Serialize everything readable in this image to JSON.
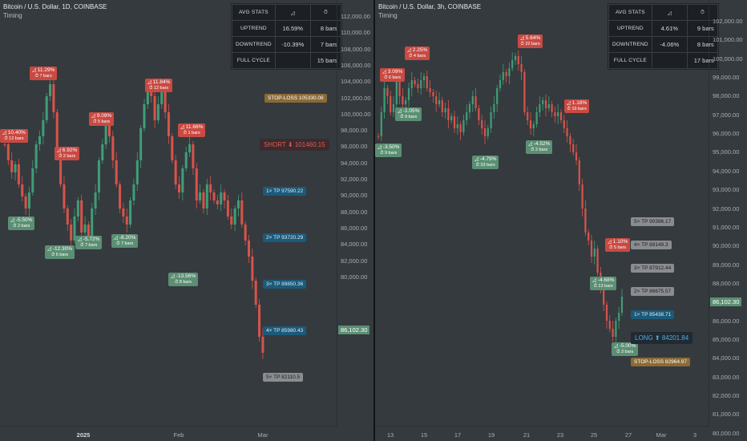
{
  "left": {
    "title": "Bitcoin / U.S. Dollar, 1D, COINBASE",
    "subtitle": "Timing",
    "price_ticks": [
      "112,000.00",
      "110,000.00",
      "108,000.00",
      "106,000.00",
      "104,000.00",
      "102,000.00",
      "100,000.00",
      "98,000.00",
      "96,000.00",
      "94,000.00",
      "92,000.00",
      "90,000.00",
      "88,000.00",
      "86,000.00",
      "84,000.00",
      "82,000.00",
      "80,000.00"
    ],
    "time_ticks": [
      {
        "label": "2025",
        "bold": true
      },
      {
        "label": "Feb",
        "bold": false
      },
      {
        "label": "Mar",
        "bold": false
      }
    ],
    "stats": {
      "header": "AVG STATS",
      "h2": "◿",
      "h3": "⏱",
      "rows": [
        {
          "label": "UPTREND",
          "pct": "16.59%",
          "bars": "8 bars"
        },
        {
          "label": "DOWNTREND",
          "pct": "-10.39%",
          "bars": "7 bars"
        },
        {
          "label": "FULL CYCLE",
          "pct": "",
          "bars": "15 bars"
        }
      ]
    },
    "labels": [
      {
        "kind": "up",
        "pct": "◿ 11.29%",
        "bars": "⏱ 7 bars"
      },
      {
        "kind": "up",
        "pct": "◿ 10.40%",
        "bars": "⏱ 12 bars"
      },
      {
        "kind": "up",
        "pct": "◿ 6.92%",
        "bars": "⏱ 2 bars"
      },
      {
        "kind": "up",
        "pct": "◿ 9.09%",
        "bars": "⏱ 5 bars"
      },
      {
        "kind": "up",
        "pct": "◿ 11.84%",
        "bars": "⏱ 12 bars"
      },
      {
        "kind": "up",
        "pct": "◿ 11.66%",
        "bars": "⏱ 1 bars"
      },
      {
        "kind": "dn",
        "pct": "◿ -5.50%",
        "bars": "⏱ 2 bars"
      },
      {
        "kind": "dn",
        "pct": "◿ -12.30%",
        "bars": "⏱ 6 bars"
      },
      {
        "kind": "dn",
        "pct": "◿ -5.72%",
        "bars": "⏱ 7 bars"
      },
      {
        "kind": "dn",
        "pct": "◿ -8.20%",
        "bars": "⏱ 7 bars"
      },
      {
        "kind": "dn",
        "pct": "◿ -13.56%",
        "bars": "⏱ 8 bars"
      }
    ],
    "stop_loss": "STOP-LOSS 105330.08",
    "signal": "SHORT ⬇ 101460.15",
    "tps": [
      "1× TP 97590.22",
      "2× TP 93720.29",
      "3× TP 89850.36",
      "4× TP 85980.43",
      "5× TP 82110.5"
    ],
    "last_price": "86,102.30"
  },
  "right": {
    "title": "Bitcoin / U.S. Dollar, 3h, COINBASE",
    "subtitle": "Timing",
    "price_ticks": [
      "102,000.00",
      "101,000.00",
      "100,000.00",
      "99,000.00",
      "98,000.00",
      "97,000.00",
      "96,000.00",
      "95,000.00",
      "94,000.00",
      "93,000.00",
      "92,000.00",
      "91,000.00",
      "90,000.00",
      "89,000.00",
      "88,000.00",
      "87,000.00",
      "86,000.00",
      "85,000.00",
      "84,000.00",
      "83,000.00",
      "82,000.00",
      "81,000.00",
      "80,000.00"
    ],
    "time_ticks": [
      {
        "label": "13",
        "bold": false
      },
      {
        "label": "15",
        "bold": false
      },
      {
        "label": "17",
        "bold": false
      },
      {
        "label": "19",
        "bold": false
      },
      {
        "label": "21",
        "bold": false
      },
      {
        "label": "23",
        "bold": false
      },
      {
        "label": "25",
        "bold": false
      },
      {
        "label": "27",
        "bold": false
      },
      {
        "label": "Mar",
        "bold": false
      },
      {
        "label": "3",
        "bold": false
      }
    ],
    "stats": {
      "header": "AVG STATS",
      "h2": "◿",
      "h3": "⏱",
      "rows": [
        {
          "label": "UPTREND",
          "pct": "4.61%",
          "bars": "9 bars"
        },
        {
          "label": "DOWNTREND",
          "pct": "-4.06%",
          "bars": "8 bars"
        },
        {
          "label": "FULL CYCLE",
          "pct": "",
          "bars": "17 bars"
        }
      ]
    },
    "labels": [
      {
        "kind": "up",
        "pct": "◿ 3.09%",
        "bars": "⏱ 6 bars"
      },
      {
        "kind": "up",
        "pct": "◿ 2.25%",
        "bars": "⏱ 4 bars"
      },
      {
        "kind": "up",
        "pct": "◿ 5.64%",
        "bars": "⏱ 22 bars"
      },
      {
        "kind": "up",
        "pct": "◿ 1.18%",
        "bars": "⏱ 19 bars"
      },
      {
        "kind": "up",
        "pct": "◿ 1.10%",
        "bars": "⏱ 5 bars"
      },
      {
        "kind": "dn",
        "pct": "◿ -1.05%",
        "bars": "⏱ 9 bars"
      },
      {
        "kind": "dn",
        "pct": "◿ -3.50%",
        "bars": "⏱ 9 bars"
      },
      {
        "kind": "dn",
        "pct": "◿ -4.79%",
        "bars": "⏱ 33 bars"
      },
      {
        "kind": "dn",
        "pct": "◿ -4.52%",
        "bars": "⏱ 2 bars"
      },
      {
        "kind": "dn",
        "pct": "◿ -4.68%",
        "bars": "⏱ 13 bars"
      },
      {
        "kind": "dn",
        "pct": "◿ -5.00%",
        "bars": "⏱ 3 bars"
      }
    ],
    "stop_loss": "STOP-LOSS 82964.97",
    "signal": "LONG ⬆ 84201.84",
    "tps": [
      "5× TP 90386.17",
      "4× TP 89149.3",
      "3× TP 87912.44",
      "2× TP 86675.57",
      "1× TP 85438.71"
    ],
    "last_price": "86,102.30"
  }
}
